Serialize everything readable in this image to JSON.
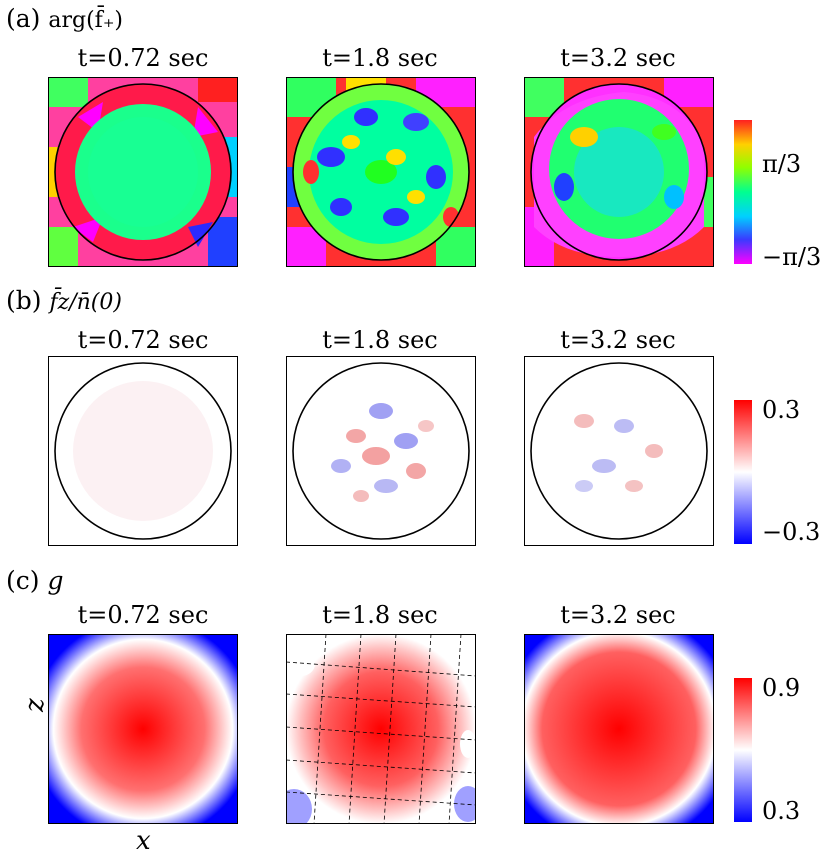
{
  "figure": {
    "section_a": {
      "prefix": "(a)",
      "label": "arg(f̄₊)",
      "titles": [
        "t=0.72 sec",
        "t=1.8 sec",
        "t=3.2 sec"
      ],
      "colorbar": {
        "top_label": "π/3",
        "bottom_label": "−π/3",
        "colors": [
          "#ff00ff",
          "#3a3aff",
          "#00d0ff",
          "#00ff90",
          "#90ff00",
          "#ffd000",
          "#ff2020"
        ]
      }
    },
    "section_b": {
      "prefix": "(b)",
      "label": "f̄z/n̄(0)",
      "titles": [
        "t=0.72 sec",
        "t=1.8 sec",
        "t=3.2 sec"
      ],
      "colorbar": {
        "top_label": "0.3",
        "bottom_label": "−0.3",
        "colors": [
          "#0000ff",
          "#ffffff",
          "#ff0000"
        ]
      }
    },
    "section_c": {
      "prefix": "(c)",
      "label": "g",
      "titles": [
        "t=0.72 sec",
        "t=1.8 sec",
        "t=3.2 sec"
      ],
      "colorbar": {
        "top_label": "0.9",
        "bottom_label": "0.3",
        "colors": [
          "#0000ff",
          "#ffffff",
          "#ff0000"
        ]
      },
      "x_axis_label": "x",
      "z_axis_label": "z"
    }
  }
}
